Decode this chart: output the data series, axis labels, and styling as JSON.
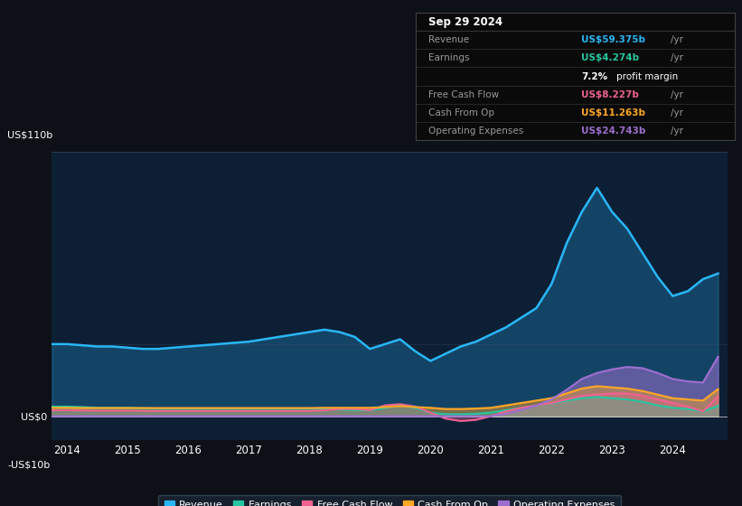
{
  "bg_color": "#0d1117",
  "chart_bg": "#0d1f35",
  "colors": {
    "revenue": "#29b6f6",
    "earnings": "#26c6a0",
    "free_cash_flow": "#f06292",
    "cash_from_op": "#ffa726",
    "operating_expenses": "#9c6fce"
  },
  "years": [
    2013.75,
    2014.0,
    2014.25,
    2014.5,
    2014.75,
    2015.0,
    2015.25,
    2015.5,
    2015.75,
    2016.0,
    2016.25,
    2016.5,
    2016.75,
    2017.0,
    2017.25,
    2017.5,
    2017.75,
    2018.0,
    2018.25,
    2018.5,
    2018.75,
    2019.0,
    2019.25,
    2019.5,
    2019.75,
    2020.0,
    2020.25,
    2020.5,
    2020.75,
    2021.0,
    2021.25,
    2021.5,
    2021.75,
    2022.0,
    2022.25,
    2022.5,
    2022.75,
    2023.0,
    2023.25,
    2023.5,
    2023.75,
    2024.0,
    2024.25,
    2024.5,
    2024.75
  ],
  "revenue": [
    30,
    30,
    29.5,
    29,
    29,
    28.5,
    28,
    28,
    28.5,
    29,
    29.5,
    30,
    30.5,
    31,
    32,
    33,
    34,
    35,
    36,
    35,
    33,
    28,
    30,
    32,
    27,
    23,
    26,
    29,
    31,
    34,
    37,
    41,
    45,
    55,
    72,
    85,
    95,
    85,
    78,
    68,
    58,
    50,
    52,
    57,
    59.375
  ],
  "earnings": [
    4,
    4,
    3.8,
    3.5,
    3.5,
    3.5,
    3.3,
    3.2,
    3.2,
    3.2,
    3.2,
    3.2,
    3.2,
    3.2,
    3.2,
    3.2,
    3.2,
    3.2,
    3.0,
    2.8,
    2.5,
    2.5,
    3.5,
    4.5,
    3.5,
    1.5,
    0.8,
    0.8,
    1.0,
    1.5,
    2.5,
    3.5,
    4.5,
    5.5,
    6.5,
    7.5,
    8,
    7.5,
    7,
    6,
    4.5,
    3.5,
    3,
    2,
    4.274
  ],
  "free_cash_flow": [
    2.5,
    2.5,
    2.4,
    2.3,
    2.3,
    2.3,
    2.2,
    2.2,
    2.2,
    2.2,
    2.2,
    2.2,
    2.2,
    2.2,
    2.2,
    2.2,
    2.2,
    2.2,
    2.5,
    3.0,
    3.0,
    2.5,
    4.5,
    5.0,
    4.0,
    1.5,
    -1.0,
    -2.0,
    -1.5,
    0.0,
    2.0,
    3.5,
    4.5,
    5.5,
    7.0,
    8.5,
    9.0,
    9.5,
    9.5,
    8.5,
    7.0,
    5.5,
    4.0,
    2.0,
    8.227
  ],
  "cash_from_op": [
    3.5,
    3.5,
    3.4,
    3.4,
    3.4,
    3.4,
    3.4,
    3.4,
    3.4,
    3.4,
    3.4,
    3.4,
    3.4,
    3.4,
    3.4,
    3.4,
    3.4,
    3.4,
    3.5,
    3.5,
    3.5,
    3.5,
    3.8,
    4.2,
    3.8,
    3.5,
    3.0,
    3.0,
    3.2,
    3.5,
    4.5,
    5.5,
    6.5,
    7.5,
    9.5,
    11.5,
    12.5,
    12.0,
    11.5,
    10.5,
    9.0,
    7.5,
    7.0,
    6.5,
    11.263
  ],
  "operating_expenses": [
    0,
    0,
    0,
    0,
    0,
    0,
    0,
    0,
    0,
    0,
    0,
    0,
    0,
    0,
    0,
    0,
    0,
    0,
    0,
    0,
    0,
    0,
    0,
    0,
    0,
    0,
    0,
    0,
    0,
    0,
    1.0,
    2.5,
    4.5,
    7.0,
    11.0,
    15.5,
    18.0,
    19.5,
    20.5,
    20.0,
    18.0,
    15.5,
    14.5,
    14.0,
    24.743
  ],
  "xlim": [
    2013.75,
    2024.9
  ],
  "ylim": [
    -10,
    110
  ],
  "xtick_years": [
    2014,
    2015,
    2016,
    2017,
    2018,
    2019,
    2020,
    2021,
    2022,
    2023,
    2024
  ],
  "legend_items": [
    {
      "label": "Revenue",
      "color": "#29b6f6"
    },
    {
      "label": "Earnings",
      "color": "#26c6a0"
    },
    {
      "label": "Free Cash Flow",
      "color": "#f06292"
    },
    {
      "label": "Cash From Op",
      "color": "#ffa726"
    },
    {
      "label": "Operating Expenses",
      "color": "#9c6fce"
    }
  ],
  "tooltip": {
    "date": "Sep 29 2024",
    "rows": [
      {
        "label": "Revenue",
        "value": "US$59.375b /yr",
        "color": "#29b6f6"
      },
      {
        "label": "Earnings",
        "value": "US$4.274b /yr",
        "color": "#26c6a0"
      },
      {
        "label": "",
        "value": "7.2% profit margin",
        "color": "white",
        "sub": true
      },
      {
        "label": "Free Cash Flow",
        "value": "US$8.227b /yr",
        "color": "#f06292"
      },
      {
        "label": "Cash From Op",
        "value": "US$11.263b /yr",
        "color": "#ffa726"
      },
      {
        "label": "Operating Expenses",
        "value": "US$24.743b /yr",
        "color": "#9c6fce"
      }
    ]
  }
}
